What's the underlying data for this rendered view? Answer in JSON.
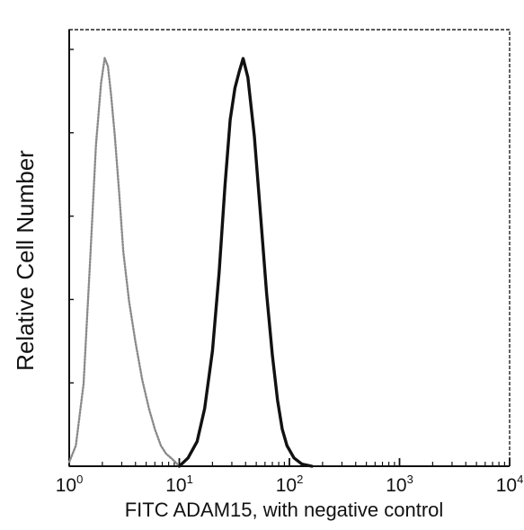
{
  "chart_data": {
    "type": "line",
    "title": "",
    "xlabel": "FITC  ADAM15,  with negative control",
    "ylabel": "Relative Cell Number",
    "x_scale": "log",
    "xlim": [
      1,
      10000
    ],
    "ylim": [
      0,
      1
    ],
    "grid": false,
    "x_ticks": [
      {
        "base": "10",
        "exp": "0"
      },
      {
        "base": "10",
        "exp": "1"
      },
      {
        "base": "10",
        "exp": "2"
      },
      {
        "base": "10",
        "exp": "3"
      },
      {
        "base": "10",
        "exp": "4"
      }
    ],
    "series": [
      {
        "style": "dotted-gray",
        "color": "#8a8a8a",
        "x": [
          1.0,
          1.15,
          1.35,
          1.55,
          1.75,
          1.95,
          2.1,
          2.25,
          2.4,
          2.6,
          2.85,
          3.1,
          3.5,
          4.0,
          4.6,
          5.3,
          6.0,
          6.8,
          7.6,
          8.4,
          9.2,
          10.0
        ],
        "y": [
          0.01,
          0.05,
          0.2,
          0.5,
          0.78,
          0.93,
          0.99,
          0.97,
          0.9,
          0.8,
          0.66,
          0.52,
          0.4,
          0.3,
          0.21,
          0.14,
          0.09,
          0.05,
          0.03,
          0.02,
          0.01,
          0.0
        ]
      },
      {
        "style": "solid-black",
        "color": "#111111",
        "x": [
          10.0,
          12.0,
          14.5,
          17.0,
          20.0,
          23.0,
          26.0,
          29.0,
          32.0,
          35.0,
          38.0,
          42.0,
          48.0,
          55.0,
          62.0,
          70.0,
          78.0,
          86.0,
          95.0,
          110.0,
          130.0,
          160.0
        ],
        "y": [
          0.0,
          0.02,
          0.06,
          0.14,
          0.28,
          0.47,
          0.68,
          0.85,
          0.93,
          0.96,
          0.98,
          0.93,
          0.8,
          0.6,
          0.42,
          0.27,
          0.16,
          0.09,
          0.05,
          0.02,
          0.005,
          0.0
        ]
      }
    ]
  }
}
